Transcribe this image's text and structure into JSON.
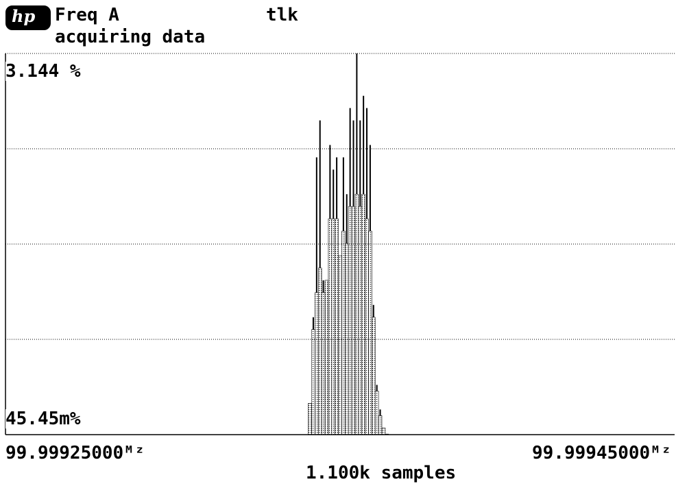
{
  "header": {
    "logo_text": "hp",
    "measurement": "Freq A",
    "status": "tlk",
    "message": "acquiring data"
  },
  "chart_data": {
    "type": "histogram",
    "y_max_label": "3.144 %",
    "y_min_label": "45.45m%",
    "x_start_label": "99.99925000ᴹᶻ",
    "x_end_label": "99.99945000ᴹᶻ",
    "samples_label": "1.100k samples",
    "x_range_MHz": [
      99.99925,
      99.99945
    ],
    "y_range_percent": [
      0.04545,
      3.144
    ],
    "grid": true,
    "series": [
      {
        "type": "envelope",
        "x": [
          99.999341,
          99.999342,
          99.999343,
          99.999344,
          99.999345,
          99.999346,
          99.999347,
          99.999348,
          99.999349,
          99.99935,
          99.999351,
          99.999352,
          99.999353,
          99.999354,
          99.999355,
          99.999356,
          99.999357,
          99.999358,
          99.999359,
          99.99936,
          99.999361,
          99.999362,
          99.999363,
          99.999364,
          99.999365,
          99.999366
        ],
        "peak_percent": [
          0.3,
          1.0,
          2.3,
          2.6,
          1.3,
          1.3,
          2.4,
          2.2,
          2.3,
          1.5,
          2.3,
          2.0,
          2.7,
          2.6,
          3.144,
          2.6,
          2.8,
          2.7,
          2.4,
          1.1,
          0.45,
          0.25,
          0.1,
          0.05,
          0.04,
          0.04
        ],
        "fill_percent": [
          0.3,
          0.9,
          1.2,
          1.4,
          1.2,
          1.3,
          1.8,
          1.8,
          1.8,
          1.5,
          1.7,
          1.6,
          1.9,
          1.9,
          2.0,
          1.9,
          2.0,
          1.8,
          1.7,
          1.0,
          0.4,
          0.2,
          0.1,
          0.05,
          0.04,
          0.04
        ]
      }
    ]
  }
}
